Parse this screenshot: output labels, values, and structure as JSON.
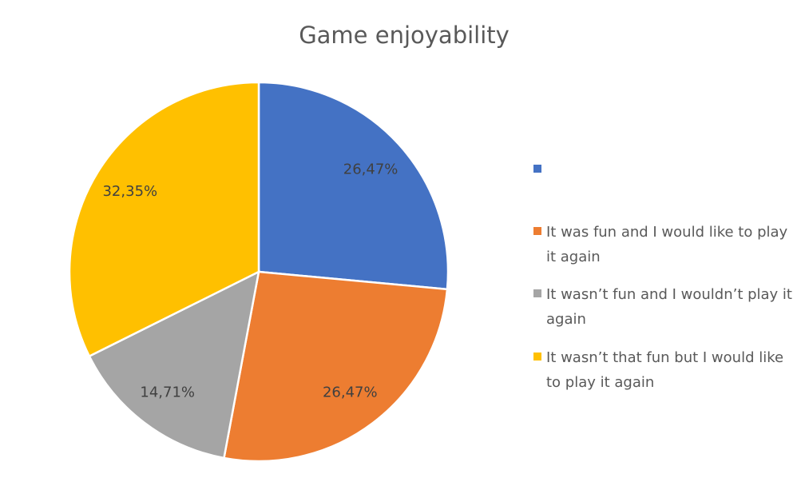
{
  "chart_data": {
    "type": "pie",
    "title": "Game enjoyability",
    "categories": [
      null,
      "It was fun and I would like to play it again",
      "It wasn’t fun and I wouldn’t play it again",
      "It wasn’t that fun but I would like to play it again"
    ],
    "values": [
      26.47,
      26.47,
      14.71,
      32.35
    ],
    "value_labels": [
      "26,47%",
      "26,47%",
      "14,71%",
      "32,35%"
    ],
    "colors": [
      "#4472c4",
      "#ed7d31",
      "#a5a5a5",
      "#ffc000"
    ]
  }
}
